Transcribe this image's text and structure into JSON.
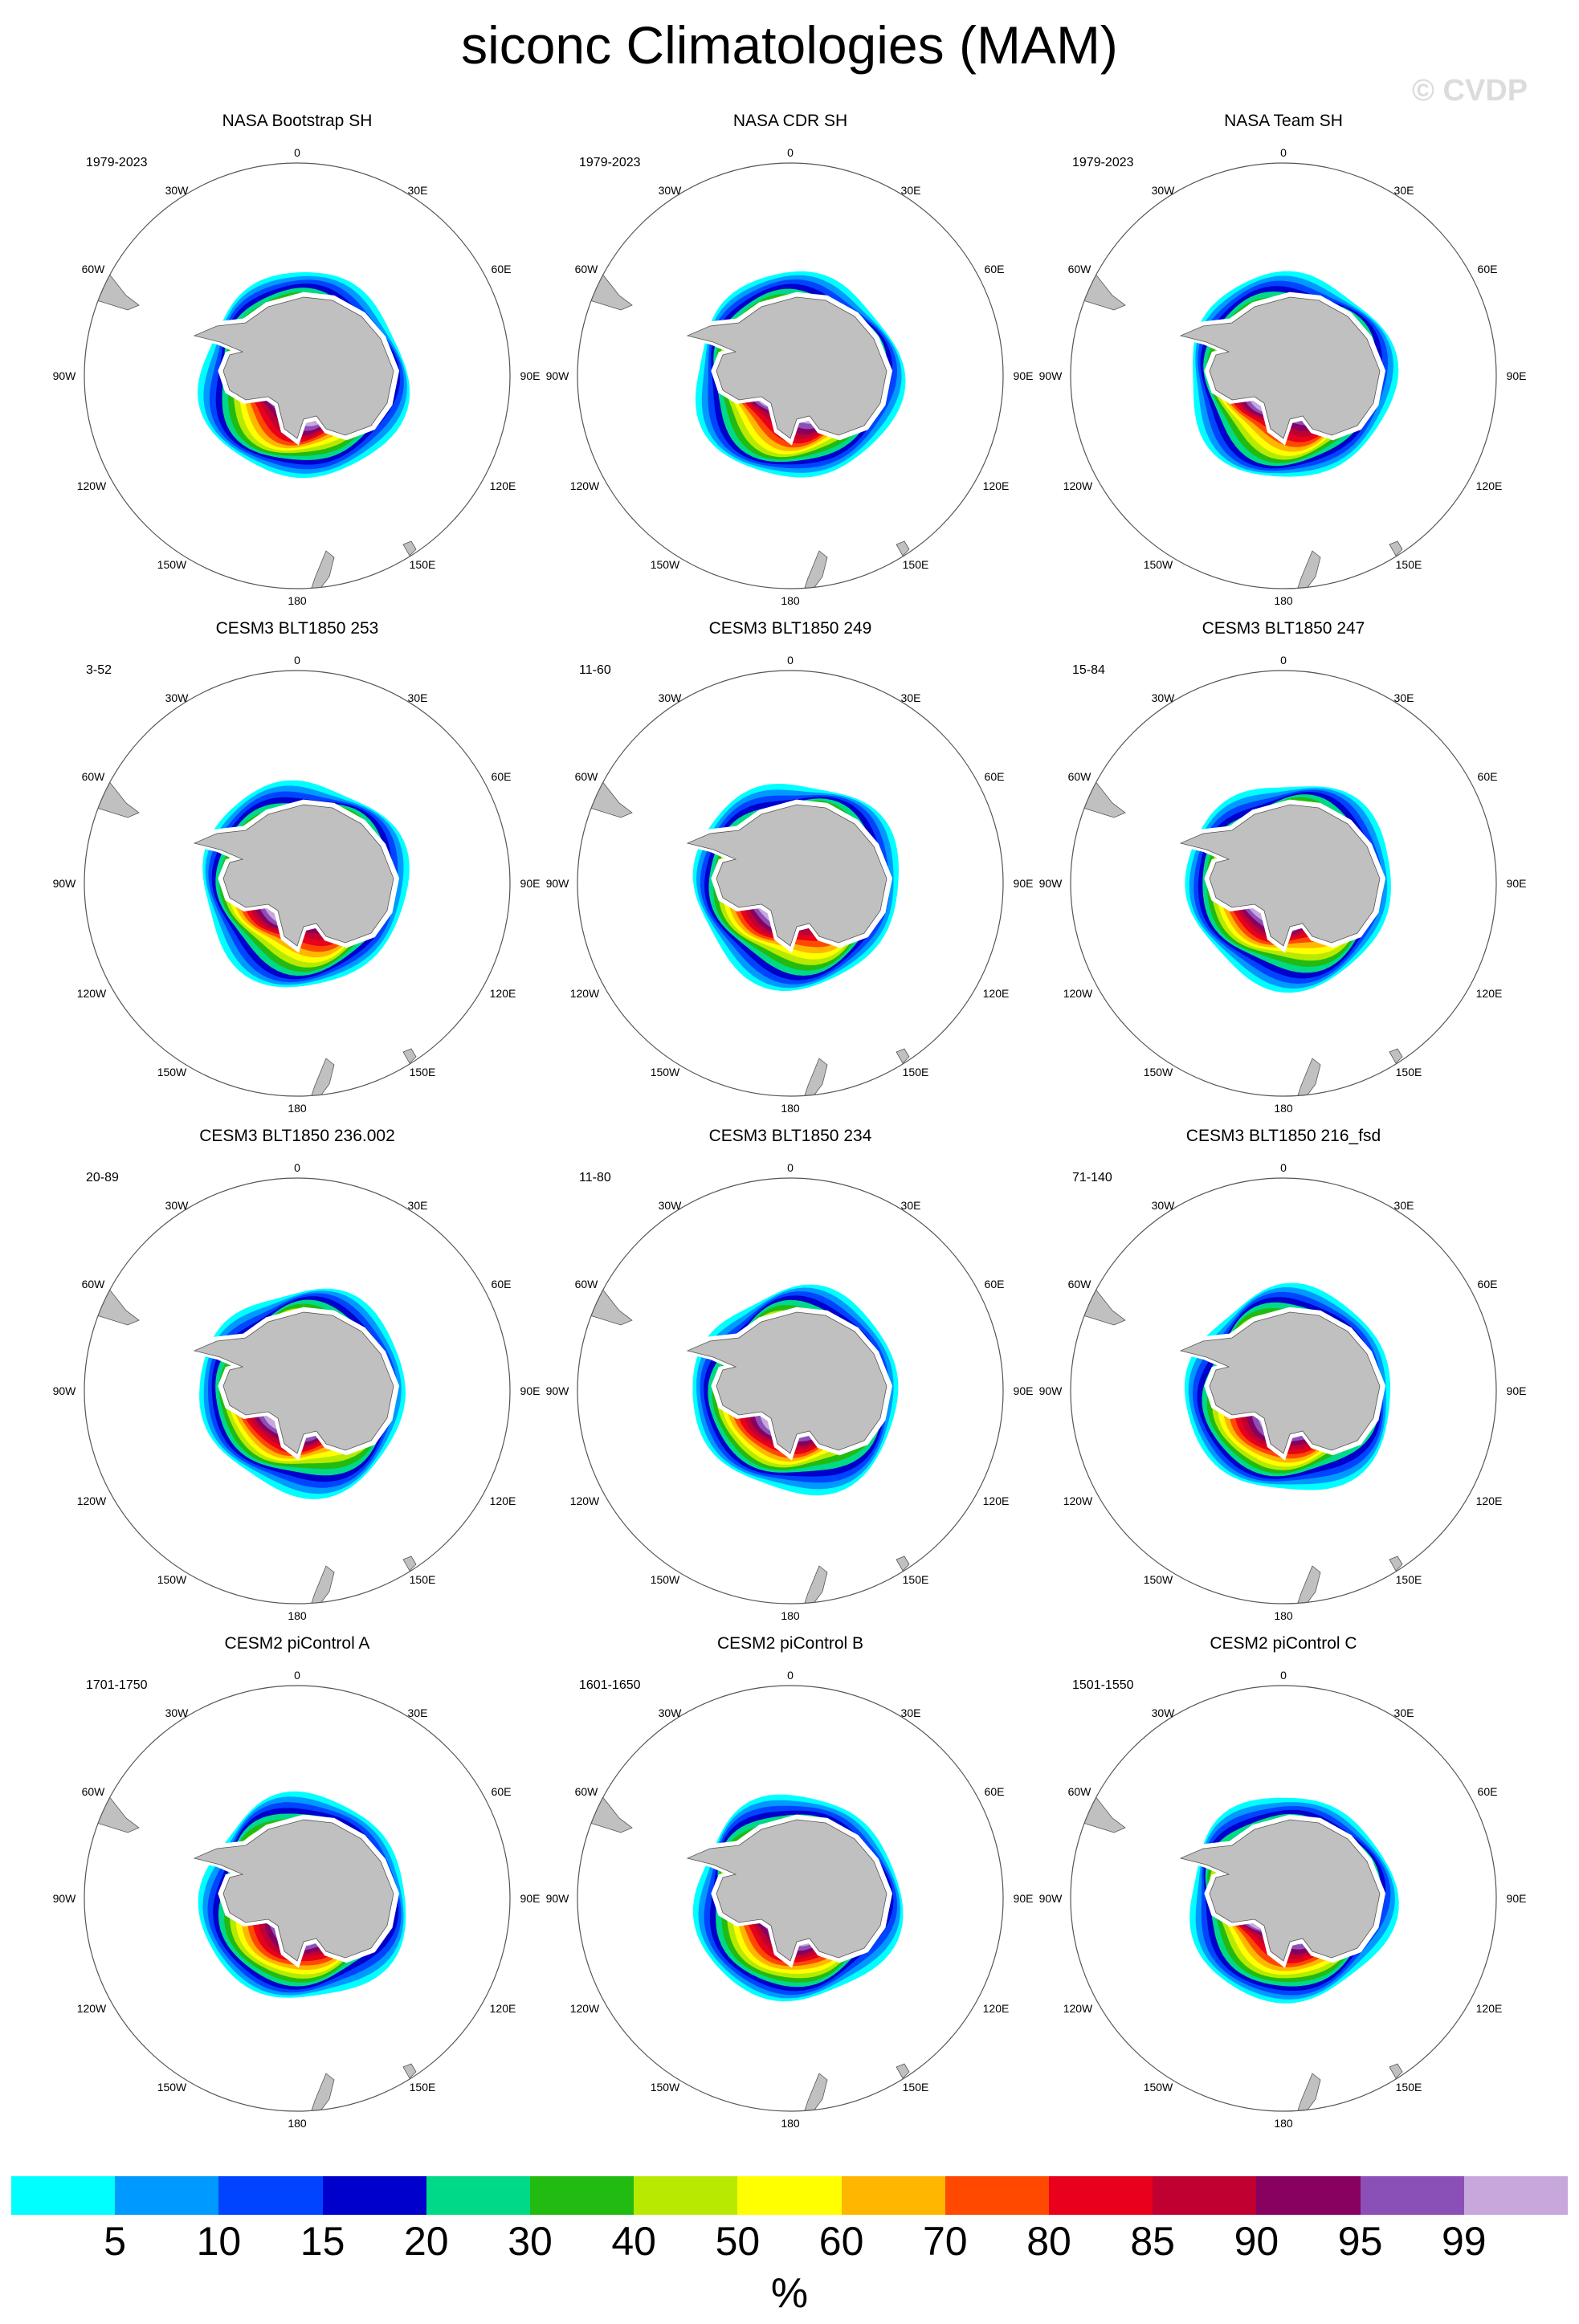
{
  "title": "siconc Climatologies (MAM)",
  "watermark": "© CVDP",
  "lon_labels": {
    "top": "0",
    "bottom": "180",
    "l30": "30W",
    "r30": "30E",
    "l60": "60W",
    "r60": "60E",
    "l90": "90W",
    "r90": "90E",
    "l120": "120W",
    "r120": "120E",
    "l150": "150W",
    "r150": "150E"
  },
  "panels": [
    {
      "title": "NASA Bootstrap SH",
      "years": "1979-2023"
    },
    {
      "title": "NASA CDR SH",
      "years": "1979-2023"
    },
    {
      "title": "NASA Team SH",
      "years": "1979-2023"
    },
    {
      "title": "CESM3 BLT1850 253",
      "years": "3-52"
    },
    {
      "title": "CESM3 BLT1850 249",
      "years": "11-60"
    },
    {
      "title": "CESM3 BLT1850 247",
      "years": "15-84"
    },
    {
      "title": "CESM3 BLT1850 236.002",
      "years": "20-89"
    },
    {
      "title": "CESM3 BLT1850 234",
      "years": "11-80"
    },
    {
      "title": "CESM3 BLT1850 216_fsd",
      "years": "71-140"
    },
    {
      "title": "CESM2 piControl A",
      "years": "1701-1750"
    },
    {
      "title": "CESM2 piControl B",
      "years": "1601-1650"
    },
    {
      "title": "CESM2 piControl C",
      "years": "1501-1550"
    }
  ],
  "colorbar": {
    "colors": [
      "#00ffff",
      "#0099ff",
      "#0044ff",
      "#0000cc",
      "#00d988",
      "#22bb11",
      "#b7ea00",
      "#ffff00",
      "#ffb600",
      "#ff4800",
      "#e8001c",
      "#c00030",
      "#880060",
      "#8b50b8",
      "#c8a8dc"
    ],
    "labels": [
      "5",
      "10",
      "15",
      "20",
      "30",
      "40",
      "50",
      "60",
      "70",
      "80",
      "85",
      "90",
      "95",
      "99"
    ],
    "units": "%"
  },
  "land_color": "#c0c0c0"
}
